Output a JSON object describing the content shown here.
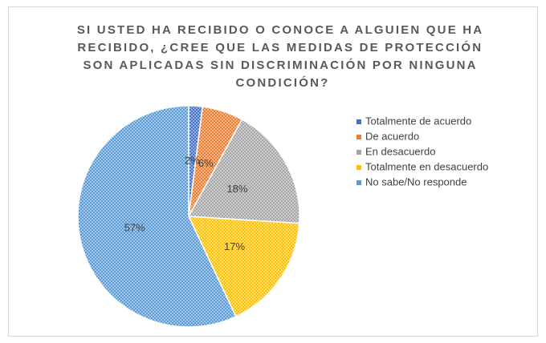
{
  "chart_data": {
    "type": "pie",
    "title": "SI USTED HA RECIBIDO O CONOCE A ALGUIEN QUE HA RECIBIDO, ¿CREE QUE LAS MEDIDAS DE PROTECCIÓN SON APLICADAS SIN DISCRIMINACIÓN POR NINGUNA CONDICIÓN?",
    "categories": [
      "Totalmente de acuerdo",
      "De acuerdo",
      "En desacuerdo",
      "Totalmente en desacuerdo",
      "No sabe/No responde"
    ],
    "values": [
      2,
      6,
      18,
      17,
      57
    ],
    "value_labels": [
      "2%",
      "6%",
      "18%",
      "17%",
      "57%"
    ],
    "colors": [
      "#4472c4",
      "#ed7d31",
      "#a5a5a5",
      "#ffc000",
      "#5b9bd5"
    ],
    "legend": "right"
  }
}
